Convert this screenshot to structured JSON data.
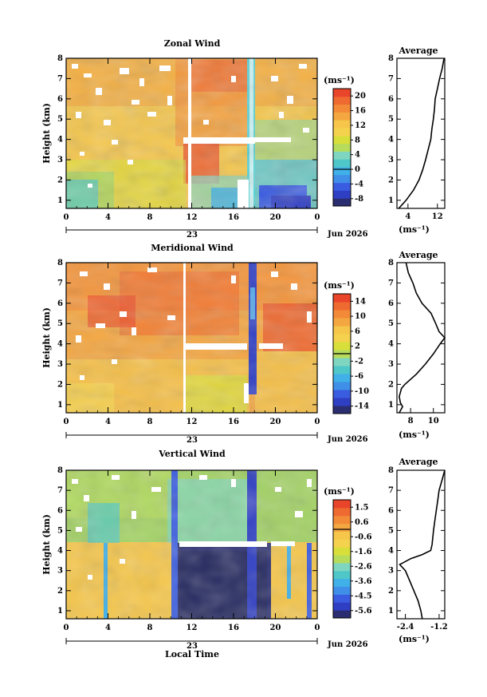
{
  "chart_data": [
    {
      "type": "heatmap",
      "title": "Zonal Wind",
      "ylabel": "Height (km)",
      "ylim": [
        0.6,
        8.0
      ],
      "yticks": [
        "1",
        "2",
        "3",
        "4",
        "5",
        "6",
        "7",
        "8"
      ],
      "xticks": [
        "0",
        "4",
        "8",
        "12",
        "16",
        "20",
        "0"
      ],
      "xlim": [
        0,
        24
      ],
      "date_label": "23",
      "month_label": "Jun 2026",
      "unit": "(ms⁻¹)",
      "colorbar_ticks": [
        "20",
        "16",
        "12",
        "8",
        "4",
        "0",
        "-4",
        "-8"
      ],
      "colorbar_range": [
        -10,
        22
      ],
      "average": {
        "title": "Average",
        "xticks": [
          "4",
          "12"
        ],
        "xlim": [
          1,
          14
        ],
        "xlabel": "(ms⁻¹)",
        "profile": [
          [
            0.6,
            1.5
          ],
          [
            1.0,
            3.5
          ],
          [
            1.5,
            5.5
          ],
          [
            2.0,
            7.0
          ],
          [
            2.5,
            8.0
          ],
          [
            3.0,
            8.8
          ],
          [
            3.5,
            9.5
          ],
          [
            4.0,
            10.2
          ],
          [
            4.5,
            10.5
          ],
          [
            5.0,
            10.9
          ],
          [
            5.5,
            11.2
          ],
          [
            6.0,
            11.4
          ],
          [
            6.5,
            12.0
          ],
          [
            7.0,
            12.6
          ],
          [
            7.5,
            13.3
          ],
          [
            8.0,
            13.8
          ]
        ]
      }
    },
    {
      "type": "heatmap",
      "title": "Meridional Wind",
      "ylabel": "Height (km)",
      "ylim": [
        0.6,
        8.0
      ],
      "yticks": [
        "1",
        "2",
        "3",
        "4",
        "5",
        "6",
        "7",
        "8"
      ],
      "xticks": [
        "0",
        "4",
        "8",
        "12",
        "16",
        "20",
        "0"
      ],
      "xlim": [
        0,
        24
      ],
      "date_label": "23",
      "month_label": "Jun 2026",
      "unit": "(ms⁻¹)",
      "colorbar_ticks": [
        "14",
        "10",
        "6",
        "2",
        "-2",
        "-6",
        "-10",
        "-14"
      ],
      "colorbar_range": [
        -16,
        16
      ],
      "average": {
        "title": "Average",
        "xticks": [
          "8",
          "10"
        ],
        "xlim": [
          6.8,
          11.0
        ],
        "xlabel": "(ms⁻¹)",
        "profile": [
          [
            0.6,
            7.0
          ],
          [
            0.9,
            7.3
          ],
          [
            1.1,
            7.1
          ],
          [
            1.4,
            7.0
          ],
          [
            1.8,
            7.2
          ],
          [
            2.0,
            7.5
          ],
          [
            2.5,
            8.5
          ],
          [
            3.0,
            9.3
          ],
          [
            3.5,
            10.0
          ],
          [
            4.0,
            10.6
          ],
          [
            4.3,
            11.0
          ],
          [
            4.6,
            10.5
          ],
          [
            5.0,
            10.2
          ],
          [
            5.5,
            9.8
          ],
          [
            6.0,
            9.0
          ],
          [
            6.5,
            8.5
          ],
          [
            7.0,
            8.2
          ],
          [
            7.5,
            7.8
          ],
          [
            8.0,
            7.6
          ]
        ]
      }
    },
    {
      "type": "heatmap",
      "title": "Vertical Wind",
      "ylabel": "Height (km)",
      "xlabel": "Local Time",
      "ylim": [
        0.6,
        8.0
      ],
      "yticks": [
        "1",
        "2",
        "3",
        "4",
        "5",
        "6",
        "7",
        "8"
      ],
      "xticks": [
        "0",
        "4",
        "8",
        "12",
        "16",
        "20",
        "0"
      ],
      "xlim": [
        0,
        24
      ],
      "date_label": "23",
      "month_label": "Jun 2026",
      "unit": "(ms⁻¹)",
      "colorbar_ticks": [
        "1.5",
        "0.6",
        "-0.6",
        "-1.6",
        "-2.6",
        "-3.6",
        "-4.5",
        "-5.6"
      ],
      "colorbar_range": [
        -6,
        2
      ],
      "average": {
        "title": "Average",
        "xticks": [
          "-2.4",
          "-1.2"
        ],
        "xlim": [
          -2.7,
          -1.0
        ],
        "xlabel": "(ms⁻¹)",
        "profile": [
          [
            0.6,
            -1.8
          ],
          [
            1.0,
            -1.85
          ],
          [
            1.5,
            -1.95
          ],
          [
            2.0,
            -2.1
          ],
          [
            2.5,
            -2.25
          ],
          [
            3.0,
            -2.4
          ],
          [
            3.3,
            -2.6
          ],
          [
            3.6,
            -2.2
          ],
          [
            3.8,
            -1.8
          ],
          [
            4.0,
            -1.5
          ],
          [
            4.3,
            -1.45
          ],
          [
            5.0,
            -1.4
          ],
          [
            5.5,
            -1.35
          ],
          [
            6.0,
            -1.3
          ],
          [
            6.5,
            -1.25
          ],
          [
            7.0,
            -1.2
          ],
          [
            7.5,
            -1.1
          ],
          [
            8.0,
            -1.0
          ]
        ]
      }
    }
  ]
}
